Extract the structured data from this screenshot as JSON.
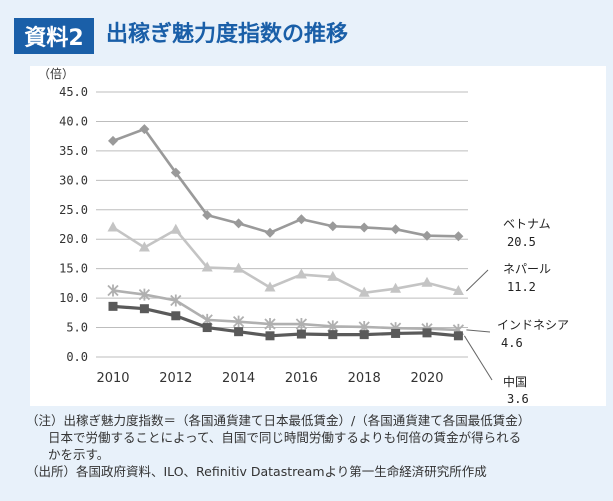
{
  "header": {
    "label": "資料2",
    "title": "出稼ぎ魅力度指数の推移"
  },
  "chart_data": {
    "type": "line",
    "title": "出稼ぎ魅力度指数の推移",
    "ylabel": "（倍）",
    "xlabel": "",
    "ylim": [
      0,
      45
    ],
    "yticks": [
      "0.0",
      "5.0",
      "10.0",
      "15.0",
      "20.0",
      "25.0",
      "30.0",
      "35.0",
      "40.0",
      "45.0"
    ],
    "xlim": [
      2010,
      2021
    ],
    "xticks": [
      "2010",
      "2012",
      "2014",
      "2016",
      "2018",
      "2020"
    ],
    "grid": true,
    "x": [
      2010,
      2011,
      2012,
      2013,
      2014,
      2015,
      2016,
      2017,
      2018,
      2019,
      2020,
      2021
    ],
    "series": [
      {
        "name": "ベトナム",
        "end_label": "20.5",
        "color": "#9a9a9a",
        "marker": "diamond",
        "values": [
          36.7,
          38.7,
          31.3,
          24.1,
          22.7,
          21.1,
          23.4,
          22.2,
          22.0,
          21.7,
          20.6,
          20.5
        ]
      },
      {
        "name": "ネパール",
        "end_label": "11.2",
        "color": "#c4c4c4",
        "marker": "triangle",
        "values": [
          22.0,
          18.6,
          21.6,
          15.2,
          15.0,
          11.8,
          14.0,
          13.6,
          10.9,
          11.6,
          12.6,
          11.2
        ]
      },
      {
        "name": "インドネシア",
        "end_label": "4.6",
        "color": "#b0b0b0",
        "marker": "cross",
        "values": [
          11.3,
          10.6,
          9.6,
          6.3,
          6.0,
          5.6,
          5.6,
          5.2,
          5.1,
          4.9,
          4.8,
          4.6
        ]
      },
      {
        "name": "中国",
        "end_label": "3.6",
        "color": "#5a5a5a",
        "marker": "square",
        "values": [
          8.6,
          8.2,
          7.0,
          5.0,
          4.3,
          3.6,
          3.9,
          3.8,
          3.8,
          4.0,
          4.1,
          3.6
        ]
      }
    ]
  },
  "notes": {
    "line1": "（注）出稼ぎ魅力度指数＝（各国通貨建て日本最低賃金）/（各国通貨建て各国最低賃金）",
    "line2": "日本で労働することによって、自国で同じ時間労働するよりも何倍の賃金が得られる",
    "line3": "かを示す。",
    "line4": "（出所）各国政府資料、ILO、Refinitiv Datastreamより第一生命経済研究所作成"
  }
}
